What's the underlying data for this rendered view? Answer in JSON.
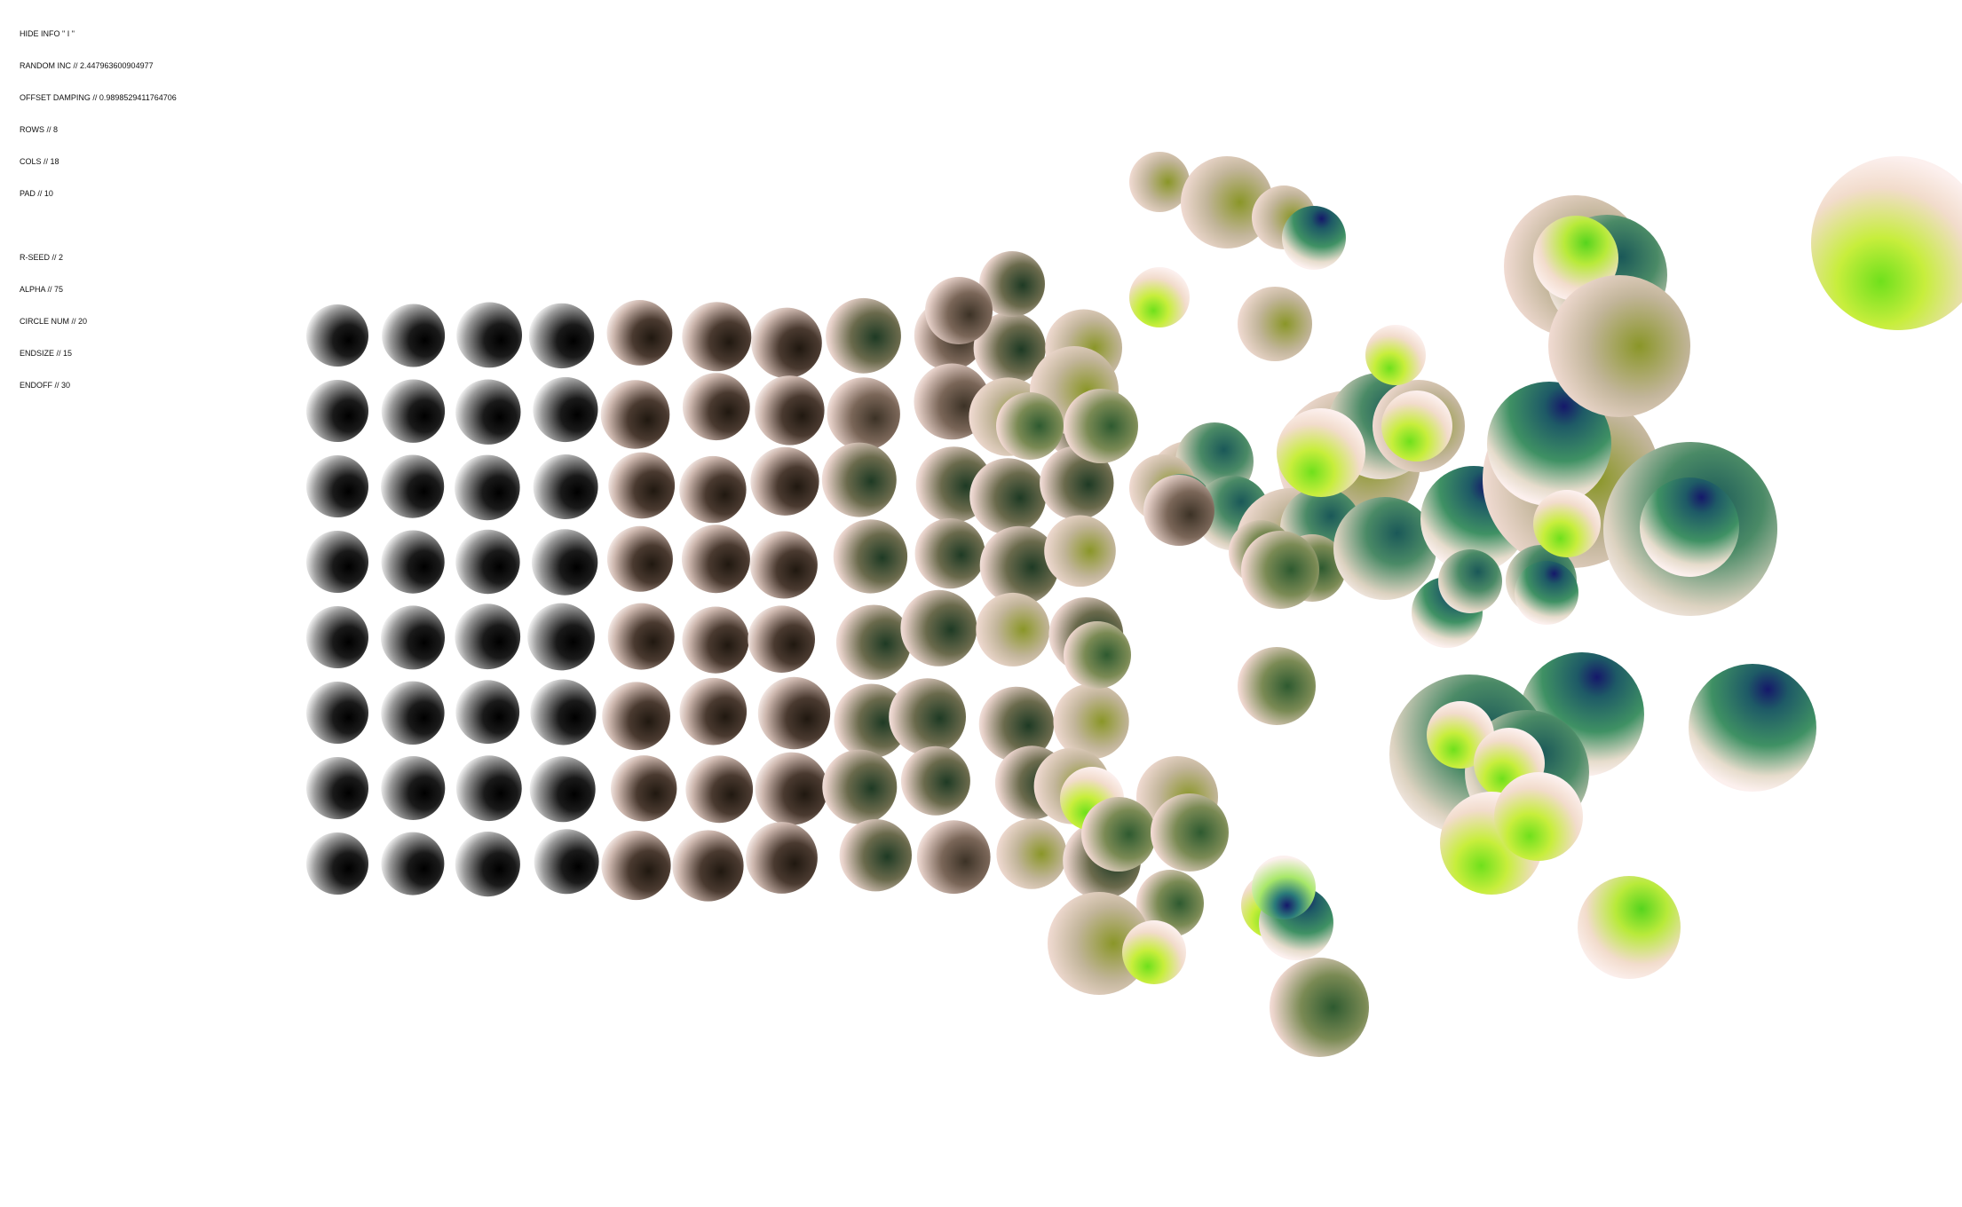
{
  "info": {
    "hide_info": "HIDE INFO \" I \"",
    "random_inc": "RANDOM INC // 2.447963600904977",
    "offset_damping": "OFFSET DAMPING // 0.9898529411764706",
    "rows": "ROWS // 8",
    "cols": "COLS // 18",
    "pad": "PAD // 10",
    "r_seed": "R-SEED // 2",
    "alpha": "ALPHA // 75",
    "circle_num": "CIRCLE NUM // 20",
    "endsize": "ENDSIZE // 15",
    "endoff": "ENDOFF // 30"
  },
  "params": {
    "rows": 8,
    "cols": 18,
    "seed": 2,
    "random_inc": 2.447963600904977,
    "offset_damping": 0.9898529411764706,
    "pad": 10,
    "alpha": 75,
    "circle_num": 20,
    "endsize": 15,
    "endoff": 30
  },
  "colors": {
    "background": "#ffffff",
    "text": "#111111",
    "outer_pale": "#f2d6cc",
    "dark_core_left": "#000000",
    "mid_brown": "#5a4636",
    "olive": "#8f9a2a",
    "teal": "#1e5a58",
    "lime": "#7ee81e",
    "navy": "#15186a"
  }
}
